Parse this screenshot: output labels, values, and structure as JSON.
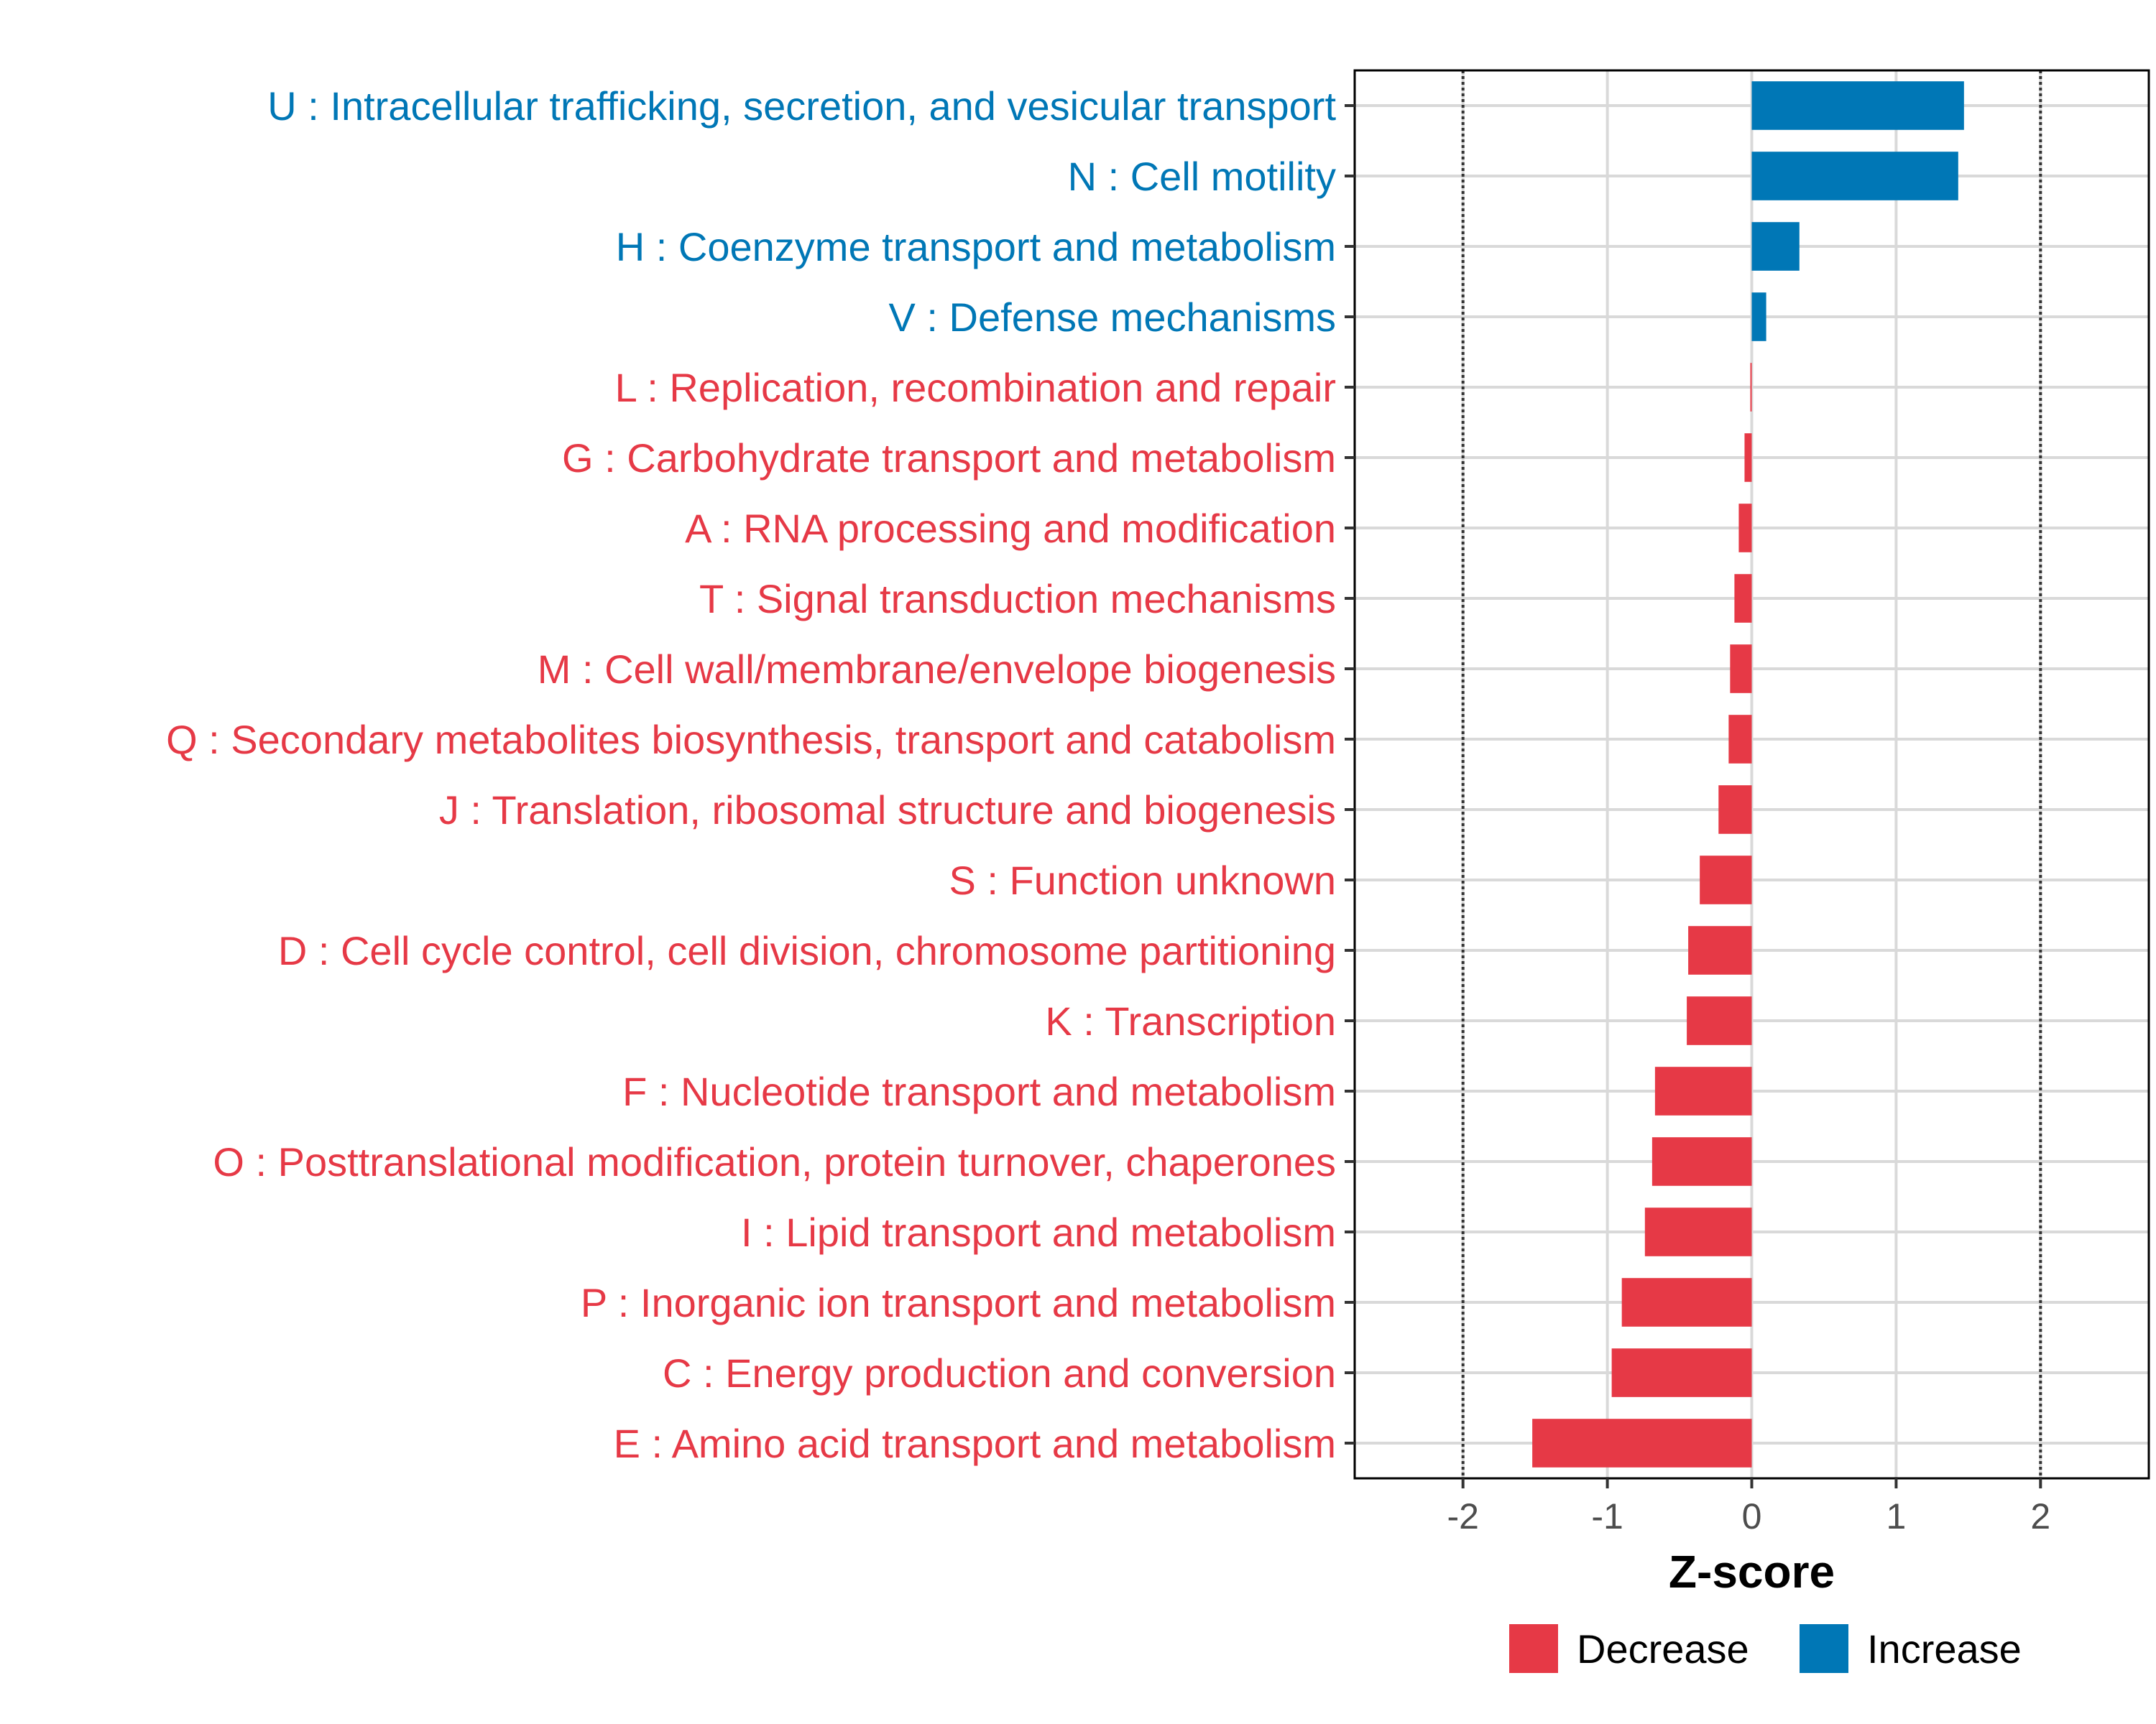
{
  "chart_data": {
    "type": "bar",
    "orientation": "horizontal",
    "title": "",
    "xlabel": "Z-score",
    "ylabel": "",
    "xlim": [
      -2.75,
      2.75
    ],
    "xticks": [
      -2,
      -1,
      0,
      1,
      2
    ],
    "xtick_labels": [
      "-2",
      "-1",
      "0",
      "1",
      "2"
    ],
    "threshold_lines": [
      -2,
      2
    ],
    "grid": true,
    "legend_position": "bottom",
    "series_colors": {
      "Decrease": "#E63946",
      "Increase": "#0077B6"
    },
    "categories": [
      {
        "label": "U : Intracellular trafficking, secretion, and vesicular transport",
        "value": 1.47,
        "group": "Increase"
      },
      {
        "label": "N : Cell motility",
        "value": 1.43,
        "group": "Increase"
      },
      {
        "label": "H : Coenzyme transport and metabolism",
        "value": 0.33,
        "group": "Increase"
      },
      {
        "label": "V : Defense mechanisms",
        "value": 0.1,
        "group": "Increase"
      },
      {
        "label": "L : Replication, recombination and repair",
        "value": -0.01,
        "group": "Decrease"
      },
      {
        "label": "G : Carbohydrate transport and metabolism",
        "value": -0.05,
        "group": "Decrease"
      },
      {
        "label": "A : RNA processing and modification",
        "value": -0.09,
        "group": "Decrease"
      },
      {
        "label": "T : Signal transduction mechanisms",
        "value": -0.12,
        "group": "Decrease"
      },
      {
        "label": "M : Cell wall/membrane/envelope biogenesis",
        "value": -0.15,
        "group": "Decrease"
      },
      {
        "label": "Q : Secondary metabolites biosynthesis, transport and catabolism",
        "value": -0.16,
        "group": "Decrease"
      },
      {
        "label": "J : Translation, ribosomal structure and biogenesis",
        "value": -0.23,
        "group": "Decrease"
      },
      {
        "label": "S : Function unknown",
        "value": -0.36,
        "group": "Decrease"
      },
      {
        "label": "D : Cell cycle control, cell division, chromosome partitioning",
        "value": -0.44,
        "group": "Decrease"
      },
      {
        "label": "K : Transcription",
        "value": -0.45,
        "group": "Decrease"
      },
      {
        "label": "F : Nucleotide transport and metabolism",
        "value": -0.67,
        "group": "Decrease"
      },
      {
        "label": "O : Posttranslational modification, protein turnover, chaperones",
        "value": -0.69,
        "group": "Decrease"
      },
      {
        "label": "I : Lipid transport and metabolism",
        "value": -0.74,
        "group": "Decrease"
      },
      {
        "label": "P : Inorganic ion transport and metabolism",
        "value": -0.9,
        "group": "Decrease"
      },
      {
        "label": "C : Energy production and conversion",
        "value": -0.97,
        "group": "Decrease"
      },
      {
        "label": "E : Amino acid transport and metabolism",
        "value": -1.52,
        "group": "Decrease"
      }
    ],
    "legend": [
      {
        "label": "Decrease",
        "color": "#E63946"
      },
      {
        "label": "Increase",
        "color": "#0077B6"
      }
    ]
  }
}
